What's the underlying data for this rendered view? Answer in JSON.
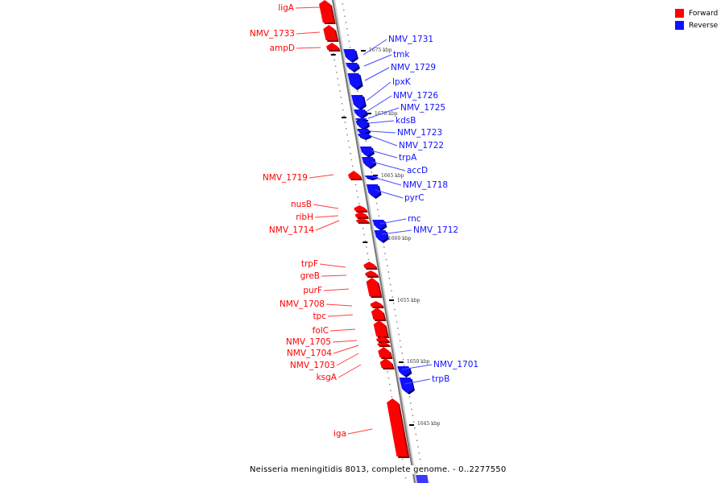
{
  "legend": {
    "forward": {
      "label": "Forward",
      "color": "#ff0000"
    },
    "reverse": {
      "label": "Reverse",
      "color": "#1010ff"
    }
  },
  "caption": "Neisseria meningitidis 8013, complete genome. - 0..2277550",
  "ticks": [
    "1675 kbp",
    "1670 kbp",
    "1665 kbp",
    "1660 kbp",
    "1655 kbp",
    "1650 kbp",
    "1645 kbp"
  ],
  "genes": [
    {
      "name": "ligA",
      "strand": "forward"
    },
    {
      "name": "NMV_1733",
      "strand": "forward"
    },
    {
      "name": "ampD",
      "strand": "forward"
    },
    {
      "name": "NMV_1731",
      "strand": "reverse"
    },
    {
      "name": "tmk",
      "strand": "reverse"
    },
    {
      "name": "NMV_1729",
      "strand": "reverse"
    },
    {
      "name": "lpxK",
      "strand": "reverse"
    },
    {
      "name": "NMV_1726",
      "strand": "reverse"
    },
    {
      "name": "NMV_1725",
      "strand": "reverse"
    },
    {
      "name": "kdsB",
      "strand": "reverse"
    },
    {
      "name": "NMV_1723",
      "strand": "reverse"
    },
    {
      "name": "NMV_1722",
      "strand": "reverse"
    },
    {
      "name": "trpA",
      "strand": "reverse"
    },
    {
      "name": "accD",
      "strand": "reverse"
    },
    {
      "name": "NMV_1719",
      "strand": "forward"
    },
    {
      "name": "NMV_1718",
      "strand": "reverse"
    },
    {
      "name": "pyrC",
      "strand": "reverse"
    },
    {
      "name": "nusB",
      "strand": "forward"
    },
    {
      "name": "ribH",
      "strand": "forward"
    },
    {
      "name": "NMV_1714",
      "strand": "forward"
    },
    {
      "name": "rnc",
      "strand": "reverse"
    },
    {
      "name": "NMV_1712",
      "strand": "reverse"
    },
    {
      "name": "trpF",
      "strand": "forward"
    },
    {
      "name": "greB",
      "strand": "forward"
    },
    {
      "name": "purF",
      "strand": "forward"
    },
    {
      "name": "NMV_1708",
      "strand": "forward"
    },
    {
      "name": "tpc",
      "strand": "forward"
    },
    {
      "name": "folC",
      "strand": "forward"
    },
    {
      "name": "NMV_1705",
      "strand": "forward"
    },
    {
      "name": "NMV_1704",
      "strand": "forward"
    },
    {
      "name": "NMV_1703",
      "strand": "forward"
    },
    {
      "name": "ksgA",
      "strand": "forward"
    },
    {
      "name": "NMV_1701",
      "strand": "reverse"
    },
    {
      "name": "trpB",
      "strand": "reverse"
    },
    {
      "name": "iga",
      "strand": "forward"
    }
  ]
}
